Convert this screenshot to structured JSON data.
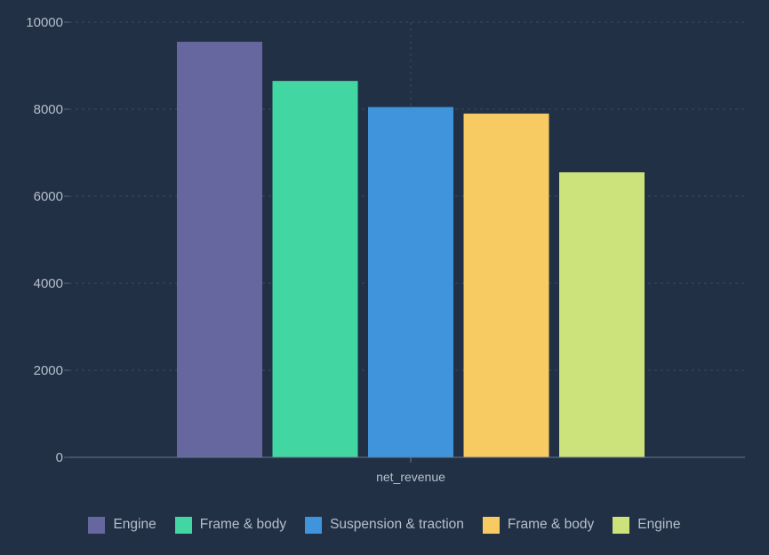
{
  "chart_data": {
    "type": "bar",
    "categories": [
      "net_revenue"
    ],
    "series": [
      {
        "name": "Engine",
        "values": [
          9550
        ],
        "color": "#67679f"
      },
      {
        "name": "Frame & body",
        "values": [
          8650
        ],
        "color": "#42d6a2"
      },
      {
        "name": "Suspension & traction",
        "values": [
          8050
        ],
        "color": "#3f94dc"
      },
      {
        "name": "Frame & body",
        "values": [
          7900
        ],
        "color": "#f8cb62"
      },
      {
        "name": "Engine",
        "values": [
          6550
        ],
        "color": "#cce27a"
      }
    ],
    "y_ticks": [
      "0",
      "2000",
      "4000",
      "6000",
      "8000",
      "10000"
    ],
    "ylim": [
      0,
      10000
    ],
    "title": "",
    "xlabel": "",
    "ylabel": "",
    "grid": true,
    "legend_position": "bottom"
  }
}
